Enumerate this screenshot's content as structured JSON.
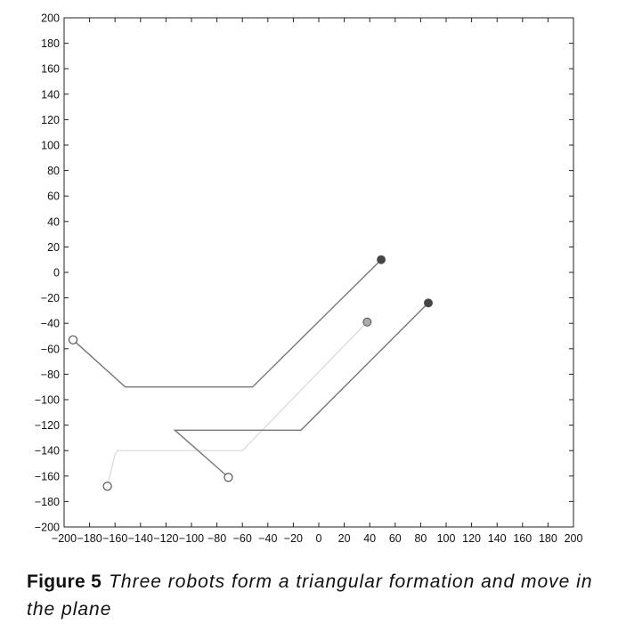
{
  "chart_data": {
    "type": "line",
    "title": "",
    "xlabel": "",
    "ylabel": "",
    "xlim": [
      -200,
      200
    ],
    "ylim": [
      -200,
      200
    ],
    "x_ticks": [
      -200,
      -180,
      -160,
      -140,
      -120,
      -100,
      -80,
      -60,
      -40,
      -20,
      0,
      20,
      40,
      60,
      80,
      100,
      120,
      140,
      160,
      180,
      200
    ],
    "y_ticks": [
      -200,
      -180,
      -160,
      -140,
      -120,
      -100,
      -80,
      -60,
      -40,
      -20,
      0,
      20,
      40,
      60,
      80,
      100,
      120,
      140,
      160,
      180,
      200
    ],
    "grid": false,
    "series": [
      {
        "color": "#777777",
        "points": [
          [
            -193,
            -53
          ],
          [
            -152,
            -90
          ],
          [
            -52,
            -90
          ],
          [
            49,
            10
          ]
        ],
        "start_marker": "open-circle",
        "end_marker": "filled-circle",
        "end_fill": "#444444"
      },
      {
        "color": "#dddddd",
        "points": [
          [
            -166,
            -168
          ],
          [
            -160,
            -143
          ],
          [
            -158,
            -140
          ],
          [
            -60,
            -140
          ],
          [
            38,
            -39
          ]
        ],
        "start_marker": "open-circle",
        "end_marker": "filled-circle",
        "end_fill": "#aaaaaa"
      },
      {
        "color": "#777777",
        "points": [
          [
            -71,
            -161
          ],
          [
            -113,
            -124
          ],
          [
            -14,
            -124
          ],
          [
            86,
            -24
          ]
        ],
        "start_marker": "open-circle",
        "end_marker": "filled-circle",
        "end_fill": "#444444"
      }
    ]
  },
  "caption": {
    "label": "Figure 5",
    "text": "Three robots form a triangular formation and move in the plane"
  }
}
